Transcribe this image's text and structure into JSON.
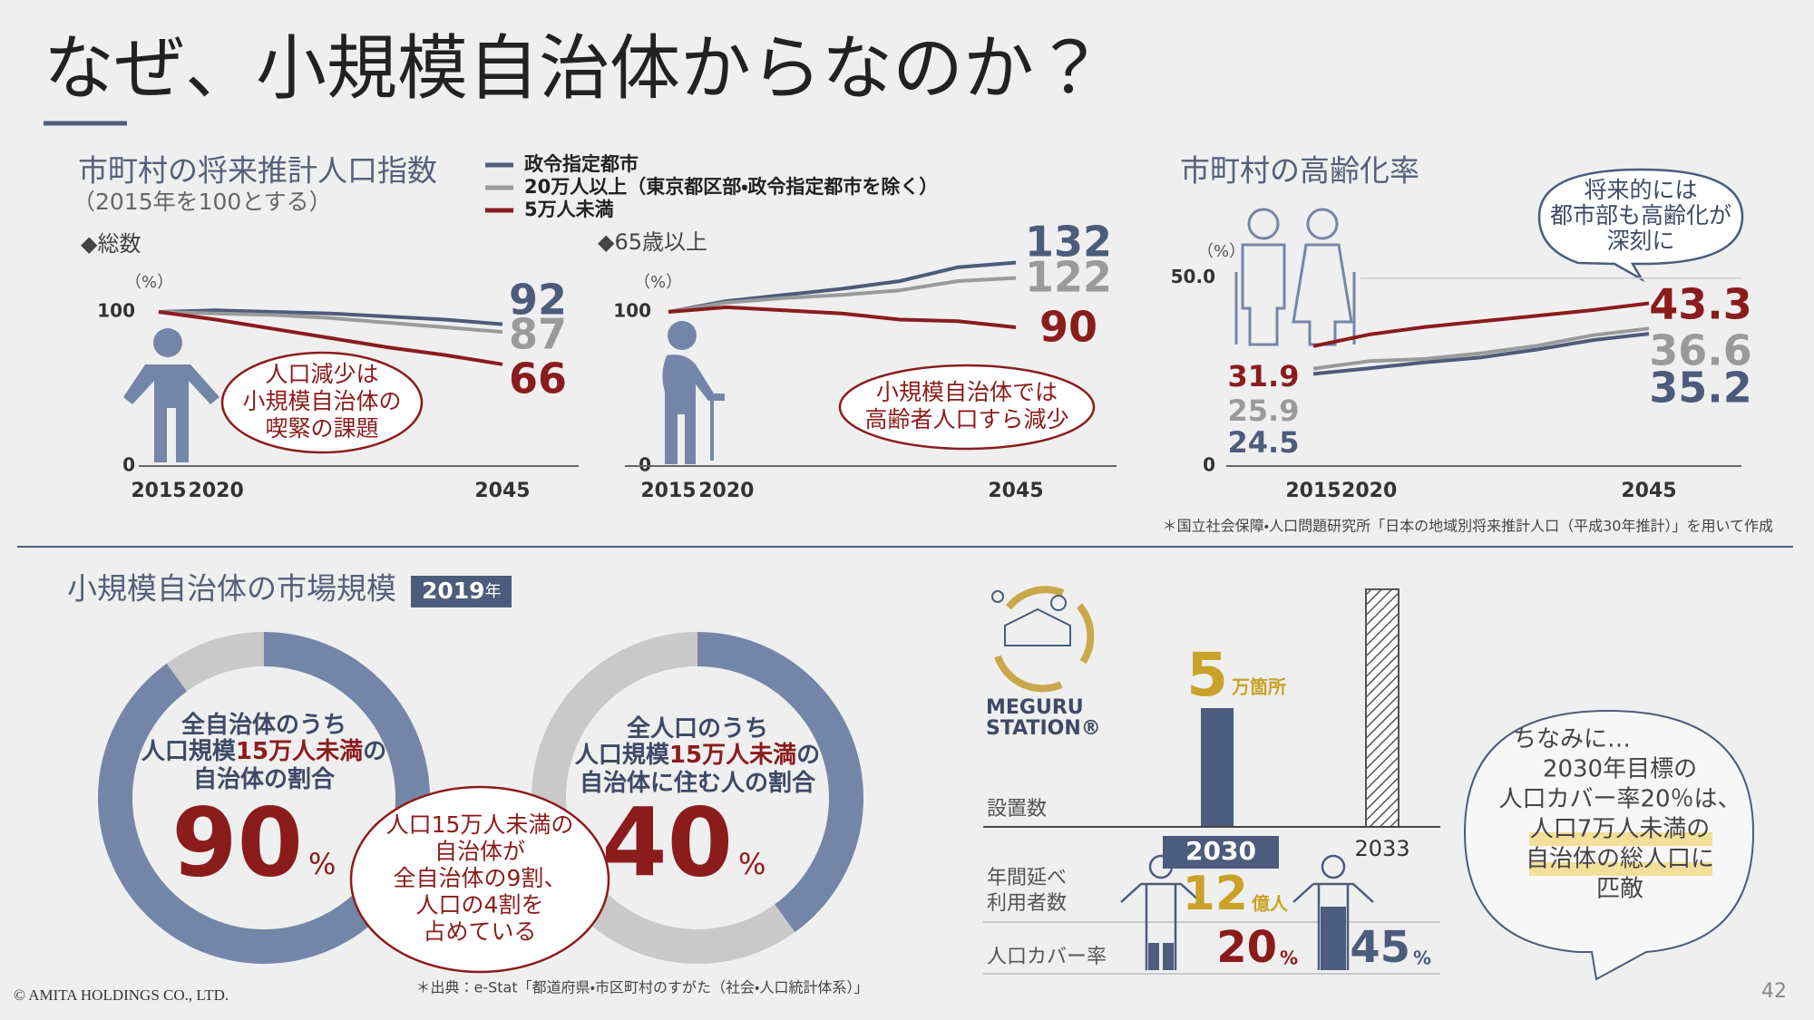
{
  "header": {
    "title": "なぜ、小規模自治体からなのか？"
  },
  "population": {
    "title": "市町村の将来推計人口指数",
    "subtitle": "（2015年を100とする）"
  },
  "chart_data": [
    {
      "type": "line",
      "subtitle": "◆総数",
      "y_unit": "（%）",
      "x": [
        2015,
        2020,
        2025,
        2030,
        2035,
        2040,
        2045
      ],
      "xlim": [
        2015,
        2045
      ],
      "xticks": [
        2015,
        2020,
        2045
      ],
      "ylim": [
        0,
        140
      ],
      "yticks": [
        0,
        100
      ],
      "grid": false,
      "series": [
        {
          "name": "政令指定都市",
          "color": "#4b5c7c",
          "values": [
            100,
            101,
            100,
            99,
            97,
            95,
            92
          ]
        },
        {
          "name": "20万人以上（東京都区部・政令指定都市を除く）",
          "color": "#9a9a9a",
          "values": [
            100,
            99,
            98,
            96,
            93,
            90,
            87
          ]
        },
        {
          "name": "5万人未満",
          "color": "#8b1c1c",
          "values": [
            100,
            95,
            89,
            83,
            77,
            72,
            66
          ]
        }
      ],
      "annotation": [
        "人口減少は",
        "小規模自治体の",
        "喫緊の課題"
      ]
    },
    {
      "type": "line",
      "subtitle": "◆65歳以上",
      "y_unit": "（%）",
      "x": [
        2015,
        2020,
        2025,
        2030,
        2035,
        2040,
        2045
      ],
      "xlim": [
        2015,
        2045
      ],
      "xticks": [
        2015,
        2020,
        2045
      ],
      "ylim": [
        0,
        140
      ],
      "yticks": [
        0,
        100
      ],
      "grid": false,
      "series": [
        {
          "color": "#4b5c7c",
          "values": [
            100,
            107,
            111,
            115,
            120,
            129,
            132
          ]
        },
        {
          "color": "#9a9a9a",
          "values": [
            100,
            106,
            109,
            111,
            114,
            120,
            122
          ]
        },
        {
          "color": "#8b1c1c",
          "values": [
            100,
            103,
            101,
            99,
            95,
            94,
            90
          ]
        }
      ],
      "annotation": [
        "小規模自治体では",
        "高齢者人口すら減少"
      ]
    },
    {
      "type": "line",
      "title": "市町村の高齢化率",
      "y_unit": "（%）",
      "x": [
        2015,
        2020,
        2025,
        2030,
        2035,
        2040,
        2045
      ],
      "xlim": [
        2015,
        2045
      ],
      "xticks": [
        2015,
        2020,
        2045
      ],
      "ylim": [
        0,
        55
      ],
      "yticks": [
        0,
        {
          "value": 50,
          "label": "50.0"
        }
      ],
      "grid": true,
      "series": [
        {
          "color": "#4b5c7c",
          "values": [
            24.5,
            26.0,
            27.6,
            28.9,
            31.0,
            33.5,
            35.2
          ]
        },
        {
          "color": "#9a9a9a",
          "values": [
            25.9,
            27.9,
            28.5,
            30.0,
            32.0,
            34.8,
            36.6
          ]
        },
        {
          "color": "#8b1c1c",
          "values": [
            31.9,
            35.0,
            37.0,
            38.5,
            40.0,
            41.5,
            43.3
          ]
        }
      ],
      "annotation": [
        "将来的には",
        "都市部も高齢化が",
        "深刻に"
      ]
    },
    {
      "type": "pie",
      "values": [
        90,
        10
      ],
      "colors": [
        "#7486a8",
        "#c9c9c9"
      ],
      "unit": "%",
      "lines": [
        [
          "全自治体のうち"
        ],
        [
          "人口規模",
          "15万人未満",
          "の"
        ],
        [
          "自治体の割合"
        ]
      ]
    },
    {
      "type": "pie",
      "values": [
        40,
        60
      ],
      "colors": [
        "#7486a8",
        "#c9c9c9"
      ],
      "unit": "%",
      "lines": [
        [
          "全人口のうち"
        ],
        [
          "人口規模",
          "15万人未満",
          "の"
        ],
        [
          "自治体に住む人の割合"
        ]
      ]
    },
    {
      "type": "bar",
      "axis_label": "設置数",
      "categories": [
        "2030",
        "2033"
      ],
      "values": [
        5,
        10
      ],
      "value_labels": [
        "5",
        null
      ],
      "value_unit": "万箇所",
      "color": "#4b5c7c",
      "hatched": [
        false,
        true
      ]
    }
  ],
  "source1": "＊国立社会保障・人口問題研究所「日本の地域別将来推計人口（平成30年推計）」を用いて作成",
  "market": {
    "title": "小規模自治体の市場規模",
    "year": "2019",
    "year_unit": "年",
    "note": [
      "人口15万人未満の",
      "自治体が",
      "全自治体の9割、",
      "人口の4割を",
      "占めている"
    ],
    "source": "＊出典：e-Stat「都道府県・市区町村のすがた（社会・人口統計体系）」"
  },
  "meguru": {
    "logo": [
      "MEGURU",
      "STATION®"
    ],
    "users": {
      "label": [
        "年間延べ",
        "利用者数"
      ],
      "value": 12,
      "unit": "億人"
    },
    "coverage": {
      "label": "人口カバー率",
      "values": [
        20,
        45
      ],
      "unit": "%"
    },
    "note": [
      "ちなみに…",
      "2030年目標の",
      "人口カバー率20％は、",
      "人口7万人未満の",
      "自治体の総人口に",
      "匹敵"
    ]
  },
  "footer": {
    "copyright": "© AMITA HOLDINGS CO., LTD.",
    "page": "42"
  }
}
